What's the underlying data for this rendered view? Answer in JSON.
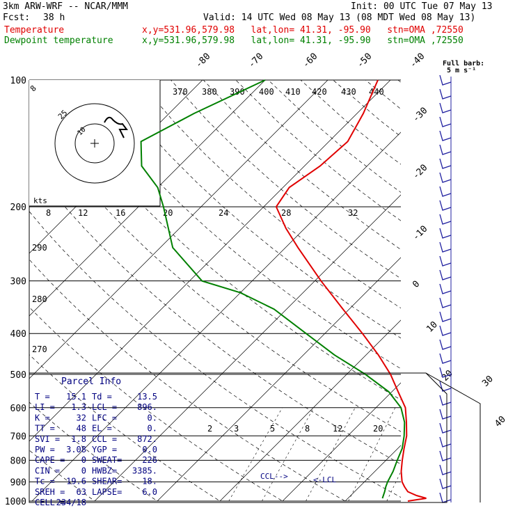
{
  "header": {
    "title": "3km ARW-WRF -- NCAR/MMM",
    "init": "Init: 00 UTC Tue 07 May 13",
    "fcst_label": "Fcst:",
    "fcst_value": "38 h",
    "valid": "Valid: 14 UTC Wed 08 May 13 (08 MDT Wed 08 May 13)",
    "temp_label": "Temperature",
    "temp_info": "x,y=531.96,579.98   lat,lon= 41.31, -95.90   stn=OMA ,72550",
    "dew_label": "Dewpoint temperature",
    "dew_info": "x,y=531.96,579.98   lat,lon= 41.31, -95.90   stn=OMA ,72550"
  },
  "colors": {
    "temperature": "#e00000",
    "dewpoint": "#008000",
    "barbs": "#2020a0",
    "panel": "#000080"
  },
  "chart_data": {
    "type": "line",
    "title": "",
    "pressure_levels": [
      100,
      200,
      300,
      400,
      500,
      600,
      700,
      800,
      900,
      1000
    ],
    "temp_axis_labels": [
      "-80",
      "-70",
      "-60",
      "-50",
      "-40",
      "-30",
      "-20",
      "-10",
      "0",
      "10",
      "20",
      "30",
      "40"
    ],
    "theta_labels": [
      "370",
      "380",
      "390",
      "400",
      "410",
      "420",
      "430",
      "440",
      "300",
      "290",
      "280",
      "270"
    ],
    "mixing_ratio_labels": [
      "2",
      "3",
      "5",
      "8",
      "12",
      "20"
    ],
    "series": [
      {
        "name": "Temperature",
        "unit": "C",
        "points": [
          [
            1000,
            20.0
          ],
          [
            985,
            22.5
          ],
          [
            970,
            20.5
          ],
          [
            950,
            18.5
          ],
          [
            925,
            17.2
          ],
          [
            900,
            16.0
          ],
          [
            850,
            14.2
          ],
          [
            800,
            12.6
          ],
          [
            750,
            11.0
          ],
          [
            700,
            9.4
          ],
          [
            650,
            7.2
          ],
          [
            600,
            4.7
          ],
          [
            550,
            1.0
          ],
          [
            500,
            -3.0
          ],
          [
            450,
            -8.0
          ],
          [
            400,
            -14.0
          ],
          [
            350,
            -21.0
          ],
          [
            300,
            -29.0
          ],
          [
            250,
            -38.0
          ],
          [
            225,
            -43.0
          ],
          [
            200,
            -48.0
          ],
          [
            180,
            -49.0
          ],
          [
            160,
            -47.5
          ],
          [
            140,
            -47.0
          ],
          [
            120,
            -49.0
          ],
          [
            100,
            -52.0
          ]
        ]
      },
      {
        "name": "Dewpoint temperature",
        "unit": "C",
        "points": [
          [
            985,
            15.5
          ],
          [
            950,
            14.8
          ],
          [
            925,
            14.2
          ],
          [
            900,
            13.7
          ],
          [
            850,
            12.9
          ],
          [
            800,
            11.8
          ],
          [
            750,
            10.7
          ],
          [
            700,
            9.0
          ],
          [
            650,
            6.9
          ],
          [
            600,
            4.0
          ],
          [
            550,
            -0.5
          ],
          [
            500,
            -7.0
          ],
          [
            450,
            -15.0
          ],
          [
            400,
            -23.0
          ],
          [
            350,
            -32.0
          ],
          [
            320,
            -40.0
          ],
          [
            300,
            -48.0
          ],
          [
            250,
            -58.0
          ],
          [
            200,
            -66.0
          ],
          [
            180,
            -70.0
          ],
          [
            160,
            -76.0
          ],
          [
            140,
            -80.0
          ],
          [
            120,
            -76.0
          ],
          [
            100,
            -70.0
          ]
        ]
      }
    ],
    "hodograph": {
      "speed_ring_labels": [
        "8",
        "12",
        "16",
        "20",
        "24",
        "28",
        "32"
      ],
      "unit_label": "kts",
      "ring_labels": [
        "8",
        "10",
        "25"
      ]
    },
    "annotations": {
      "ccl": "CCL-->",
      "lcl": "<-LCL",
      "full_barb": "Full barb:",
      "barb_unit": "5 m s⁻¹"
    }
  },
  "parcel_info": {
    "title": "Parcel Info",
    "rows": [
      [
        "T  =",
        "15.1",
        "Td =",
        "13.5"
      ],
      [
        "LI =",
        "1.3",
        "LCL =",
        "896."
      ],
      [
        "K  =",
        "32",
        "LFC =",
        "0."
      ],
      [
        "TT =",
        "48",
        "EL  =",
        "0."
      ],
      [
        "SVI =",
        "1.8",
        "CCL =",
        "872."
      ],
      [
        "PW =",
        "3.08",
        "YGP =",
        "0.0"
      ],
      [
        "CAPE =",
        "0",
        "SWEAT=",
        "226"
      ],
      [
        "CIN  =",
        "0",
        "HWBZ=",
        "3385."
      ],
      [
        "Tc =",
        "19.6",
        "SHEAR=",
        "18."
      ],
      [
        "SREH =",
        "63",
        "LAPSE=",
        "6.0"
      ],
      [
        "CELL =",
        "234/18",
        "",
        ""
      ]
    ]
  }
}
